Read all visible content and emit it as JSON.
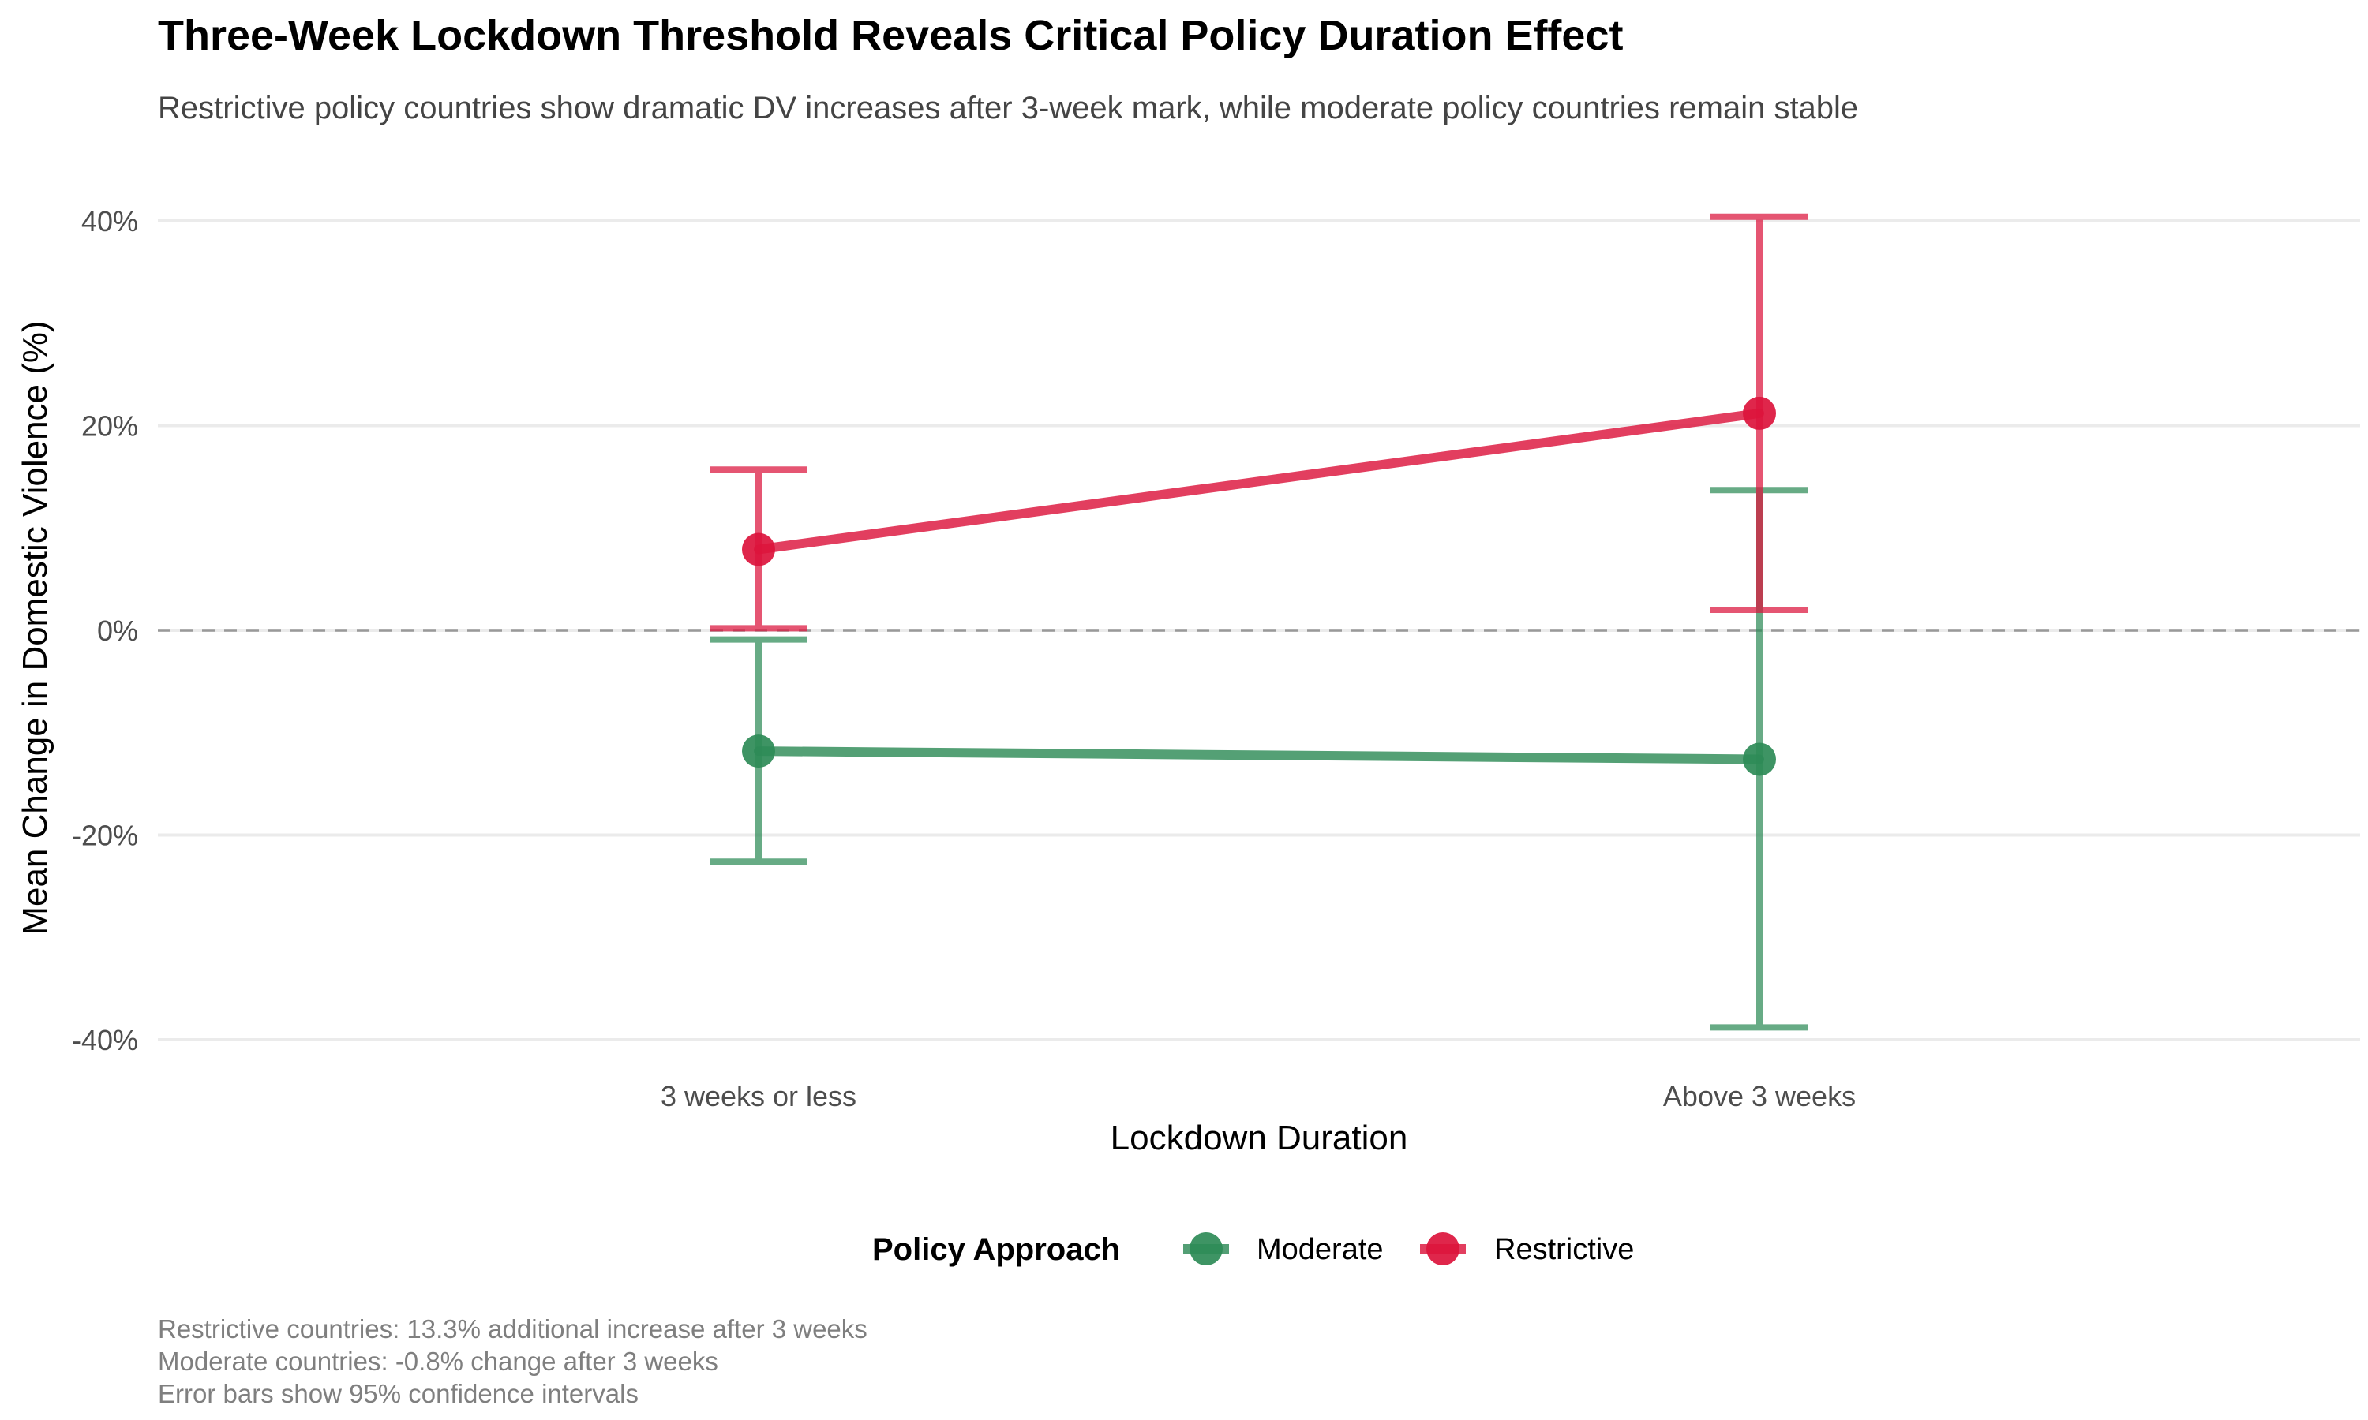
{
  "title": "Three-Week Lockdown Threshold Reveals Critical Policy Duration Effect",
  "subtitle": "Restrictive policy countries show dramatic DV increases after 3-week mark, while moderate policy countries remain stable",
  "caption": [
    "Restrictive countries: 13.3% additional increase after 3 weeks",
    "Moderate countries: -0.8% change after 3 weeks",
    "Error bars show 95% confidence intervals"
  ],
  "chart_data": {
    "type": "line",
    "xlabel": "Lockdown Duration",
    "ylabel": "Mean Change in Domestic Violence (%)",
    "categories": [
      "3 weeks or less",
      "Above 3 weeks"
    ],
    "ylim": [
      -42,
      45
    ],
    "yticks": [
      -40,
      -20,
      0,
      20,
      40
    ],
    "ytick_labels": [
      "-40%",
      "-20%",
      "0%",
      "20%",
      "40%"
    ],
    "reference_line": 0,
    "grid": "horizontal",
    "legend_title": "Policy Approach",
    "legend_position": "bottom",
    "series": [
      {
        "name": "Moderate",
        "color": "#2E8B57",
        "values": [
          -11.8,
          -12.6
        ],
        "ci_low": [
          -22.6,
          -38.8
        ],
        "ci_high": [
          -0.9,
          13.7
        ]
      },
      {
        "name": "Restrictive",
        "color": "#DC143C",
        "values": [
          7.9,
          21.2
        ],
        "ci_low": [
          0.2,
          2.0
        ],
        "ci_high": [
          15.7,
          40.4
        ]
      }
    ]
  }
}
